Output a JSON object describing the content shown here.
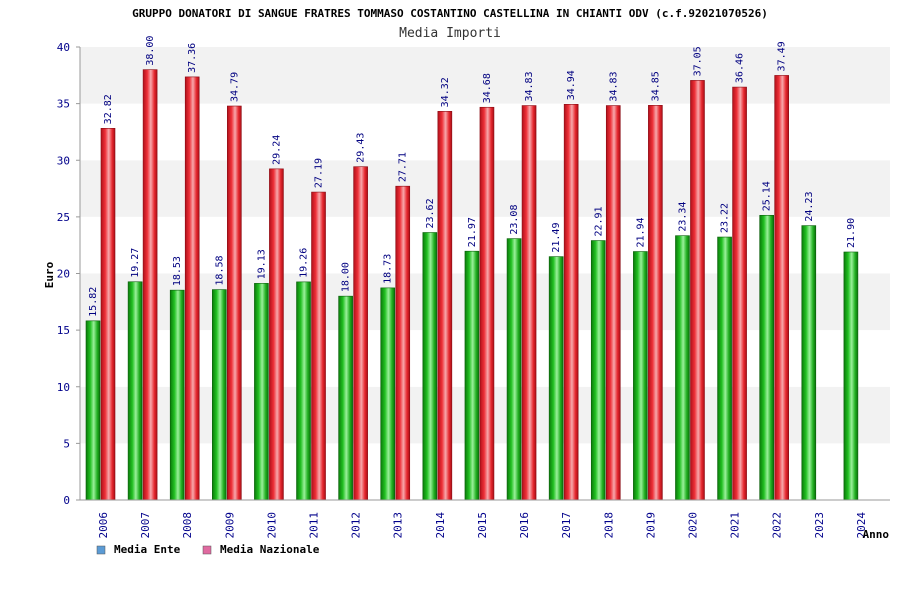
{
  "chart_data": {
    "type": "bar",
    "title": "GRUPPO DONATORI DI SANGUE FRATRES TOMMASO COSTANTINO CASTELLINA IN CHIANTI ODV (c.f.92021070526)",
    "subtitle": "Media Importi",
    "xlabel": "Anno",
    "ylabel": "Euro",
    "ylim": [
      0,
      40
    ],
    "yticks": [
      "0",
      "5",
      "10",
      "15",
      "20",
      "25",
      "30",
      "35",
      "40"
    ],
    "grid": true,
    "legend_position": "bottom-left",
    "categories": [
      "2006",
      "2007",
      "2008",
      "2009",
      "2010",
      "2011",
      "2012",
      "2013",
      "2014",
      "2015",
      "2016",
      "2017",
      "2018",
      "2019",
      "2020",
      "2021",
      "2022",
      "2023",
      "2024"
    ],
    "series": [
      {
        "name": "Media Ente",
        "color": "#1faa1f",
        "legend_color": "#5b9bd5",
        "values": [
          15.82,
          19.27,
          18.53,
          18.58,
          19.13,
          19.26,
          18.0,
          18.73,
          23.62,
          21.97,
          23.08,
          21.49,
          22.91,
          21.94,
          23.34,
          23.22,
          25.14,
          24.23,
          21.9
        ],
        "labels": [
          "15.82",
          "19.27",
          "18.53",
          "18.58",
          "19.13",
          "19.26",
          "18.00",
          "18.73",
          "23.62",
          "21.97",
          "23.08",
          "21.49",
          "22.91",
          "21.94",
          "23.34",
          "23.22",
          "25.14",
          "24.23",
          "21.90"
        ]
      },
      {
        "name": "Media Nazionale",
        "color": "#e8202a",
        "legend_color": "#e06aa0",
        "values": [
          32.82,
          38.0,
          37.36,
          34.79,
          29.24,
          27.19,
          29.43,
          27.71,
          34.32,
          34.68,
          34.83,
          34.94,
          34.83,
          34.85,
          37.05,
          36.46,
          37.49,
          null,
          null
        ],
        "labels": [
          "32.82",
          "38.00",
          "37.36",
          "34.79",
          "29.24",
          "27.19",
          "29.43",
          "27.71",
          "34.32",
          "34.68",
          "34.83",
          "34.94",
          "34.83",
          "34.85",
          "37.05",
          "36.46",
          "37.49",
          null,
          null
        ]
      }
    ]
  }
}
